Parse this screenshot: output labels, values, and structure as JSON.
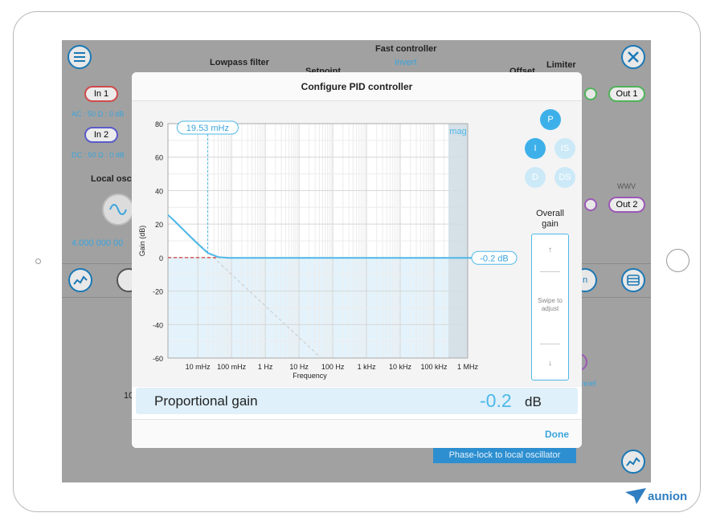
{
  "background": {
    "fast_controller": "Fast controller",
    "lowpass_filter": "Lowpass filter",
    "invert": "Invert",
    "setpoint": "Setpoint",
    "offset": "Offset",
    "limiter": "Limiter",
    "in1": "In 1",
    "in2": "In 2",
    "in1_settings": "AC : 50 Ω : 0 dB",
    "in2_settings": "DC : 50 Ω : 0 dB",
    "local_osc": "Local osc",
    "freq": "4.000 000 00",
    "out1": "Out 1",
    "out2": "Out 2",
    "left_num": "10",
    "right_partial": "n",
    "channel": "nnel",
    "phase_lock": "Phase-lock to local oscillator"
  },
  "modal": {
    "title": "Configure PID controller",
    "terms": {
      "p": "P",
      "i": "I",
      "is": "IS",
      "d": "D",
      "ds": "DS"
    },
    "overall_gain": "Overall gain",
    "swipe": "Swipe to adjust",
    "up_arrow": "↑",
    "down_arrow": "↓",
    "prop_label": "Proportional gain",
    "prop_value": "-0.2",
    "prop_unit": "dB",
    "done": "Done"
  },
  "chart_data": {
    "type": "line",
    "xlabel": "Frequency",
    "ylabel": "Gain (dB)",
    "x_scale": "log",
    "xlim_hz": [
      0.0013,
      1000000
    ],
    "ylim": [
      -60,
      80
    ],
    "y_ticks": [
      80,
      60,
      40,
      20,
      0,
      -20,
      -40,
      -60
    ],
    "x_ticks": [
      "10 mHz",
      "100 mHz",
      "1 Hz",
      "10 Hz",
      "100 Hz",
      "1 kHz",
      "10 kHz",
      "100 kHz",
      "1 MHz"
    ],
    "mag_label": "mag",
    "corner_label": "19.53 mHz",
    "corner_hz": 0.01953,
    "gain_label": "-0.2 dB",
    "proportional_gain_db": -0.2,
    "grid": true,
    "series": [
      {
        "x": [
          0.0013,
          0.002,
          0.004,
          0.008,
          0.0195,
          0.04,
          0.08,
          1,
          100,
          100000,
          400000
        ],
        "y": [
          25.5,
          22,
          16,
          10,
          2.8,
          0.3,
          -0.2,
          -0.2,
          -0.2,
          -0.2,
          -0.2
        ]
      }
    ]
  },
  "colors": {
    "accent": "#4db8e8",
    "term_active": "#3db0ea",
    "term_inactive": "#cce9f8",
    "red": "#d13b3b",
    "fill": "#e4f3fb"
  }
}
